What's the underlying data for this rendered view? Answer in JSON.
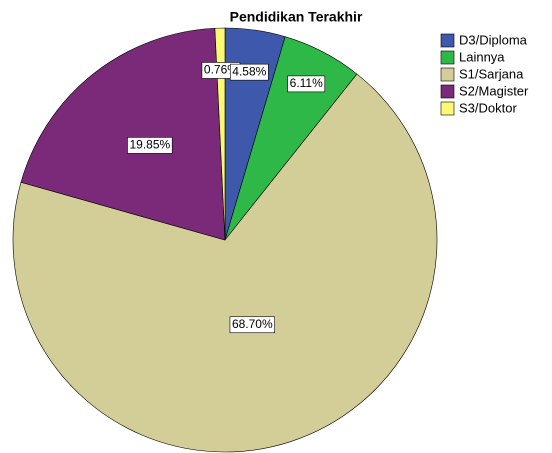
{
  "chart_data": {
    "type": "pie",
    "title": "Pendidikan Terakhir",
    "categories": [
      "D3/Diploma",
      "Lainnya",
      "S1/Sarjana",
      "S2/Magister",
      "S3/Doktor"
    ],
    "values": [
      4.58,
      6.11,
      68.7,
      19.85,
      0.76
    ],
    "value_labels": [
      "4.58%",
      "6.11%",
      "68.70%",
      "19.85%",
      "0.76%"
    ],
    "colors": [
      "#3e58ac",
      "#2eb848",
      "#d3ce97",
      "#7b2a7a",
      "#fbf873"
    ],
    "legend": "right"
  }
}
